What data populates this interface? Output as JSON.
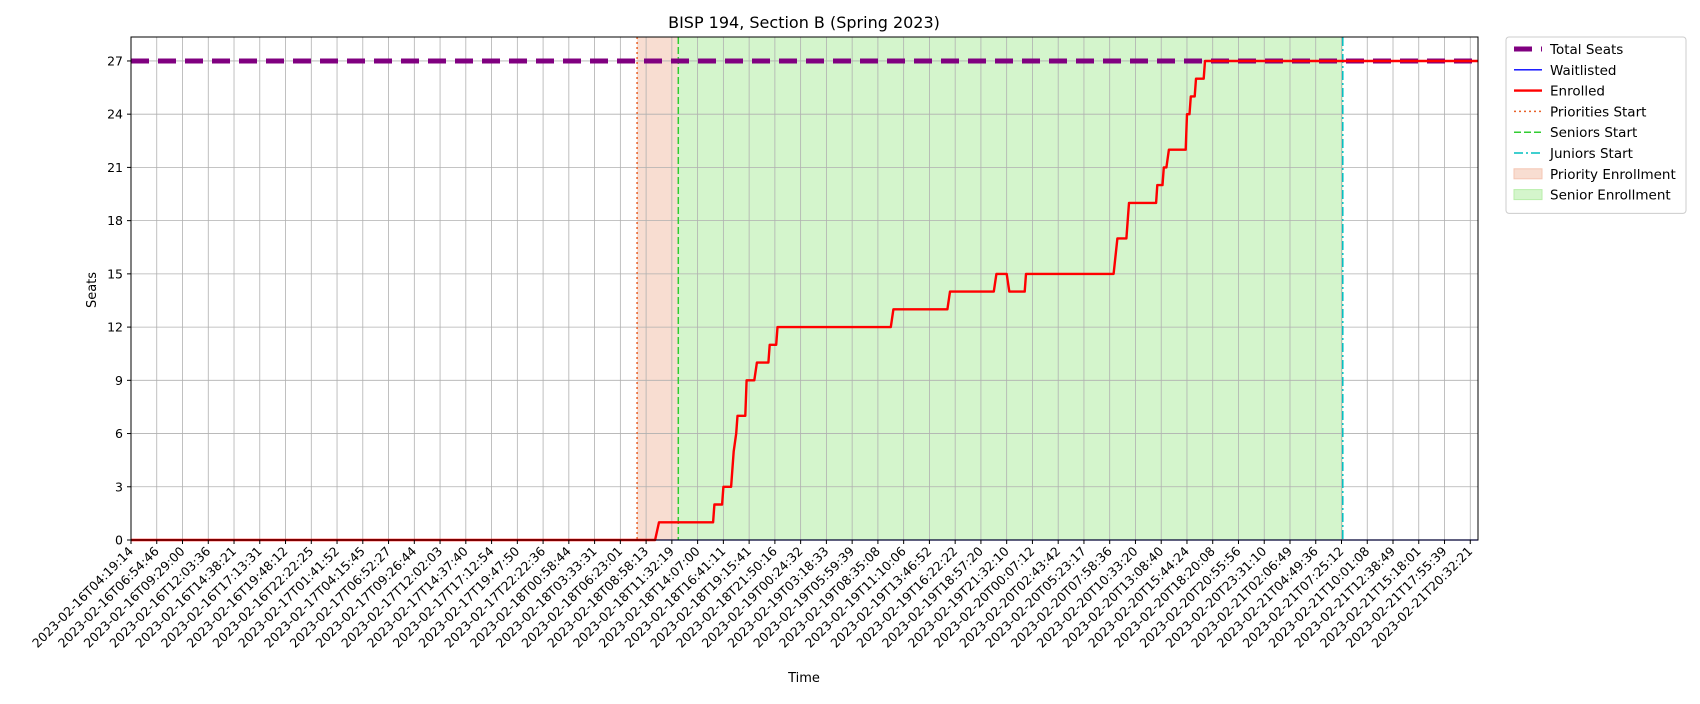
{
  "chart_data": {
    "type": "line",
    "title": "BISP 194, Section B (Spring 2023)",
    "xlabel": "Time",
    "ylabel": "Seats",
    "ylim": [
      0,
      28.35
    ],
    "yticks": [
      0,
      3,
      6,
      9,
      12,
      15,
      18,
      21,
      24,
      27
    ],
    "grid": true,
    "legend_position": "outside-top-right",
    "x_tick_labels": [
      "2023-02-16T04:19:14",
      "2023-02-16T06:54:46",
      "2023-02-16T09:29:00",
      "2023-02-16T12:03:36",
      "2023-02-16T14:38:21",
      "2023-02-16T17:13:31",
      "2023-02-16T19:48:12",
      "2023-02-16T22:22:25",
      "2023-02-17T01:41:52",
      "2023-02-17T04:15:45",
      "2023-02-17T06:52:27",
      "2023-02-17T09:26:44",
      "2023-02-17T12:02:03",
      "2023-02-17T14:37:40",
      "2023-02-17T17:12:54",
      "2023-02-17T19:47:50",
      "2023-02-17T22:22:36",
      "2023-02-18T00:58:44",
      "2023-02-18T03:33:31",
      "2023-02-18T06:23:01",
      "2023-02-18T08:58:13",
      "2023-02-18T11:32:19",
      "2023-02-18T14:07:00",
      "2023-02-18T16:41:11",
      "2023-02-18T19:15:41",
      "2023-02-18T21:50:16",
      "2023-02-19T00:24:32",
      "2023-02-19T03:18:33",
      "2023-02-19T05:59:39",
      "2023-02-19T08:35:08",
      "2023-02-19T11:10:06",
      "2023-02-19T13:46:52",
      "2023-02-19T16:22:22",
      "2023-02-19T18:57:20",
      "2023-02-19T21:32:10",
      "2023-02-20T00:07:12",
      "2023-02-20T02:43:42",
      "2023-02-20T05:23:17",
      "2023-02-20T07:58:36",
      "2023-02-20T10:33:20",
      "2023-02-20T13:08:40",
      "2023-02-20T15:44:24",
      "2023-02-20T18:20:08",
      "2023-02-20T20:55:56",
      "2023-02-20T23:31:10",
      "2023-02-21T02:06:49",
      "2023-02-21T04:49:36",
      "2023-02-21T07:25:12",
      "2023-02-21T10:01:08",
      "2023-02-21T12:38:49",
      "2023-02-21T15:18:01",
      "2023-02-21T17:55:39",
      "2023-02-21T20:32:21"
    ],
    "x_range": [
      0,
      52.3
    ],
    "series": [
      {
        "name": "Total Seats",
        "color": "#800080",
        "style": "dashed-thick",
        "points": [
          [
            0,
            27
          ],
          [
            52.3,
            27
          ]
        ]
      },
      {
        "name": "Waitlisted",
        "color": "#0000ff",
        "style": "solid-thin",
        "points": [
          [
            0,
            0
          ],
          [
            52.3,
            0
          ]
        ]
      },
      {
        "name": "Enrolled",
        "color": "#ff0000",
        "style": "solid",
        "points": [
          [
            0,
            0
          ],
          [
            20.35,
            0
          ],
          [
            20.5,
            1
          ],
          [
            22.6,
            1
          ],
          [
            22.65,
            2
          ],
          [
            22.95,
            2
          ],
          [
            23.0,
            3
          ],
          [
            23.3,
            3
          ],
          [
            23.4,
            5
          ],
          [
            23.5,
            6
          ],
          [
            23.55,
            7
          ],
          [
            23.85,
            7
          ],
          [
            23.9,
            9
          ],
          [
            24.2,
            9
          ],
          [
            24.3,
            10
          ],
          [
            24.75,
            10
          ],
          [
            24.8,
            11
          ],
          [
            25.05,
            11
          ],
          [
            25.1,
            12
          ],
          [
            29.5,
            12
          ],
          [
            29.6,
            13
          ],
          [
            31.7,
            13
          ],
          [
            31.8,
            14
          ],
          [
            33.5,
            14
          ],
          [
            33.6,
            15
          ],
          [
            34.0,
            15
          ],
          [
            34.1,
            14
          ],
          [
            34.7,
            14
          ],
          [
            34.75,
            15
          ],
          [
            38.15,
            15
          ],
          [
            38.3,
            17
          ],
          [
            38.65,
            17
          ],
          [
            38.75,
            19
          ],
          [
            39.8,
            19
          ],
          [
            39.85,
            20
          ],
          [
            40.05,
            20
          ],
          [
            40.1,
            21
          ],
          [
            40.2,
            21
          ],
          [
            40.3,
            22
          ],
          [
            40.95,
            22
          ],
          [
            41.0,
            24
          ],
          [
            41.1,
            24
          ],
          [
            41.15,
            25
          ],
          [
            41.3,
            25
          ],
          [
            41.35,
            26
          ],
          [
            41.65,
            26
          ],
          [
            41.7,
            27
          ],
          [
            52.3,
            27
          ]
        ]
      }
    ],
    "vertical_lines": [
      {
        "name": "Priorities Start",
        "x": 19.65,
        "color": "#e8622a",
        "style": "dotted"
      },
      {
        "name": "Seniors Start",
        "x": 21.25,
        "color": "#32cd32",
        "style": "dashed"
      },
      {
        "name": "Juniors Start",
        "x": 47.05,
        "color": "#00bfbf",
        "style": "dashdot"
      }
    ],
    "spans": [
      {
        "name": "Priority Enrollment",
        "x_start": 19.65,
        "x_end": 21.25,
        "color": "#f4c6b3"
      },
      {
        "name": "Senior Enrollment",
        "x_start": 21.25,
        "x_end": 47.05,
        "color": "#b8eeaa"
      }
    ],
    "legend": [
      {
        "label": "Total Seats",
        "kind": "dashed-thick",
        "color": "#800080"
      },
      {
        "label": "Waitlisted",
        "kind": "solid-thin",
        "color": "#0000ff"
      },
      {
        "label": "Enrolled",
        "kind": "solid",
        "color": "#ff0000"
      },
      {
        "label": "Priorities Start",
        "kind": "dotted",
        "color": "#e8622a"
      },
      {
        "label": "Seniors Start",
        "kind": "dashed",
        "color": "#32cd32"
      },
      {
        "label": "Juniors Start",
        "kind": "dashdot",
        "color": "#00bfbf"
      },
      {
        "label": "Priority Enrollment",
        "kind": "patch",
        "color": "#f4c6b3"
      },
      {
        "label": "Senior Enrollment",
        "kind": "patch",
        "color": "#b8eeaa"
      }
    ]
  }
}
